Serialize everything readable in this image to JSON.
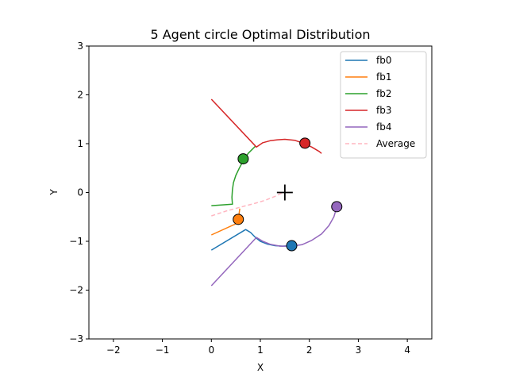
{
  "chart_data": {
    "type": "line",
    "title": "5 Agent circle Optimal Distribution",
    "xlabel": "X",
    "ylabel": "Y",
    "xlim": [
      -2.5,
      4.5
    ],
    "ylim": [
      -3,
      3
    ],
    "xticks": [
      -2,
      -1,
      0,
      1,
      2,
      3,
      4
    ],
    "yticks": [
      -3,
      -2,
      -1,
      0,
      1,
      2,
      3
    ],
    "xtick_labels": [
      "−2",
      "−1",
      "0",
      "1",
      "2",
      "3",
      "4"
    ],
    "ytick_labels": [
      "−3",
      "−2",
      "−1",
      "0",
      "1",
      "2",
      "3"
    ],
    "grid": false,
    "legend_position": "top-right",
    "center_marker": {
      "x": 1.5,
      "y": 0.0,
      "symbol": "plus"
    },
    "series": [
      {
        "name": "fb0",
        "color": "#1f77b4",
        "dash": false,
        "points": [
          [
            0.0,
            -1.18
          ],
          [
            0.7,
            -0.76
          ],
          [
            0.8,
            -0.82
          ],
          [
            0.9,
            -0.92
          ],
          [
            1.0,
            -1.0
          ],
          [
            1.15,
            -1.06
          ],
          [
            1.3,
            -1.09
          ],
          [
            1.45,
            -1.1
          ],
          [
            1.64,
            -1.09
          ]
        ],
        "final": [
          1.64,
          -1.09
        ]
      },
      {
        "name": "fb1",
        "color": "#ff7f0e",
        "dash": false,
        "points": [
          [
            0.0,
            -0.87
          ],
          [
            0.55,
            -0.62
          ],
          [
            0.56,
            -0.5
          ],
          [
            0.57,
            -0.4
          ],
          [
            0.58,
            -0.33
          ]
        ],
        "final": [
          0.55,
          -0.55
        ]
      },
      {
        "name": "fb2",
        "color": "#2ca02c",
        "dash": false,
        "points": [
          [
            0.0,
            -0.27
          ],
          [
            0.43,
            -0.24
          ],
          [
            0.42,
            -0.1
          ],
          [
            0.43,
            0.05
          ],
          [
            0.45,
            0.2
          ],
          [
            0.5,
            0.35
          ],
          [
            0.57,
            0.5
          ],
          [
            0.65,
            0.65
          ],
          [
            0.75,
            0.8
          ],
          [
            0.9,
            0.95
          ]
        ],
        "final": [
          0.65,
          0.69
        ]
      },
      {
        "name": "fb3",
        "color": "#d62728",
        "dash": false,
        "points": [
          [
            0.0,
            1.91
          ],
          [
            0.92,
            0.93
          ],
          [
            1.05,
            1.02
          ],
          [
            1.2,
            1.06
          ],
          [
            1.35,
            1.08
          ],
          [
            1.5,
            1.09
          ],
          [
            1.7,
            1.07
          ],
          [
            1.9,
            1.0
          ],
          [
            2.05,
            0.93
          ],
          [
            2.2,
            0.84
          ],
          [
            2.25,
            0.8
          ]
        ],
        "final": [
          1.91,
          1.01
        ]
      },
      {
        "name": "fb4",
        "color": "#9467bd",
        "dash": false,
        "points": [
          [
            0.0,
            -1.91
          ],
          [
            0.92,
            -0.92
          ],
          [
            1.05,
            -1.0
          ],
          [
            1.2,
            -1.06
          ],
          [
            1.4,
            -1.1
          ],
          [
            1.64,
            -1.1
          ],
          [
            1.85,
            -1.07
          ],
          [
            2.05,
            -0.98
          ],
          [
            2.25,
            -0.85
          ],
          [
            2.4,
            -0.68
          ],
          [
            2.5,
            -0.5
          ],
          [
            2.56,
            -0.3
          ]
        ],
        "final": [
          2.56,
          -0.29
        ]
      },
      {
        "name": "Average",
        "color": "#ffb6c1",
        "dash": true,
        "points": [
          [
            0.0,
            -0.48
          ],
          [
            0.3,
            -0.38
          ],
          [
            0.6,
            -0.3
          ],
          [
            0.9,
            -0.22
          ],
          [
            1.1,
            -0.16
          ],
          [
            1.3,
            -0.08
          ],
          [
            1.4,
            -0.03
          ],
          [
            1.5,
            0.0
          ]
        ],
        "final": null
      }
    ]
  }
}
